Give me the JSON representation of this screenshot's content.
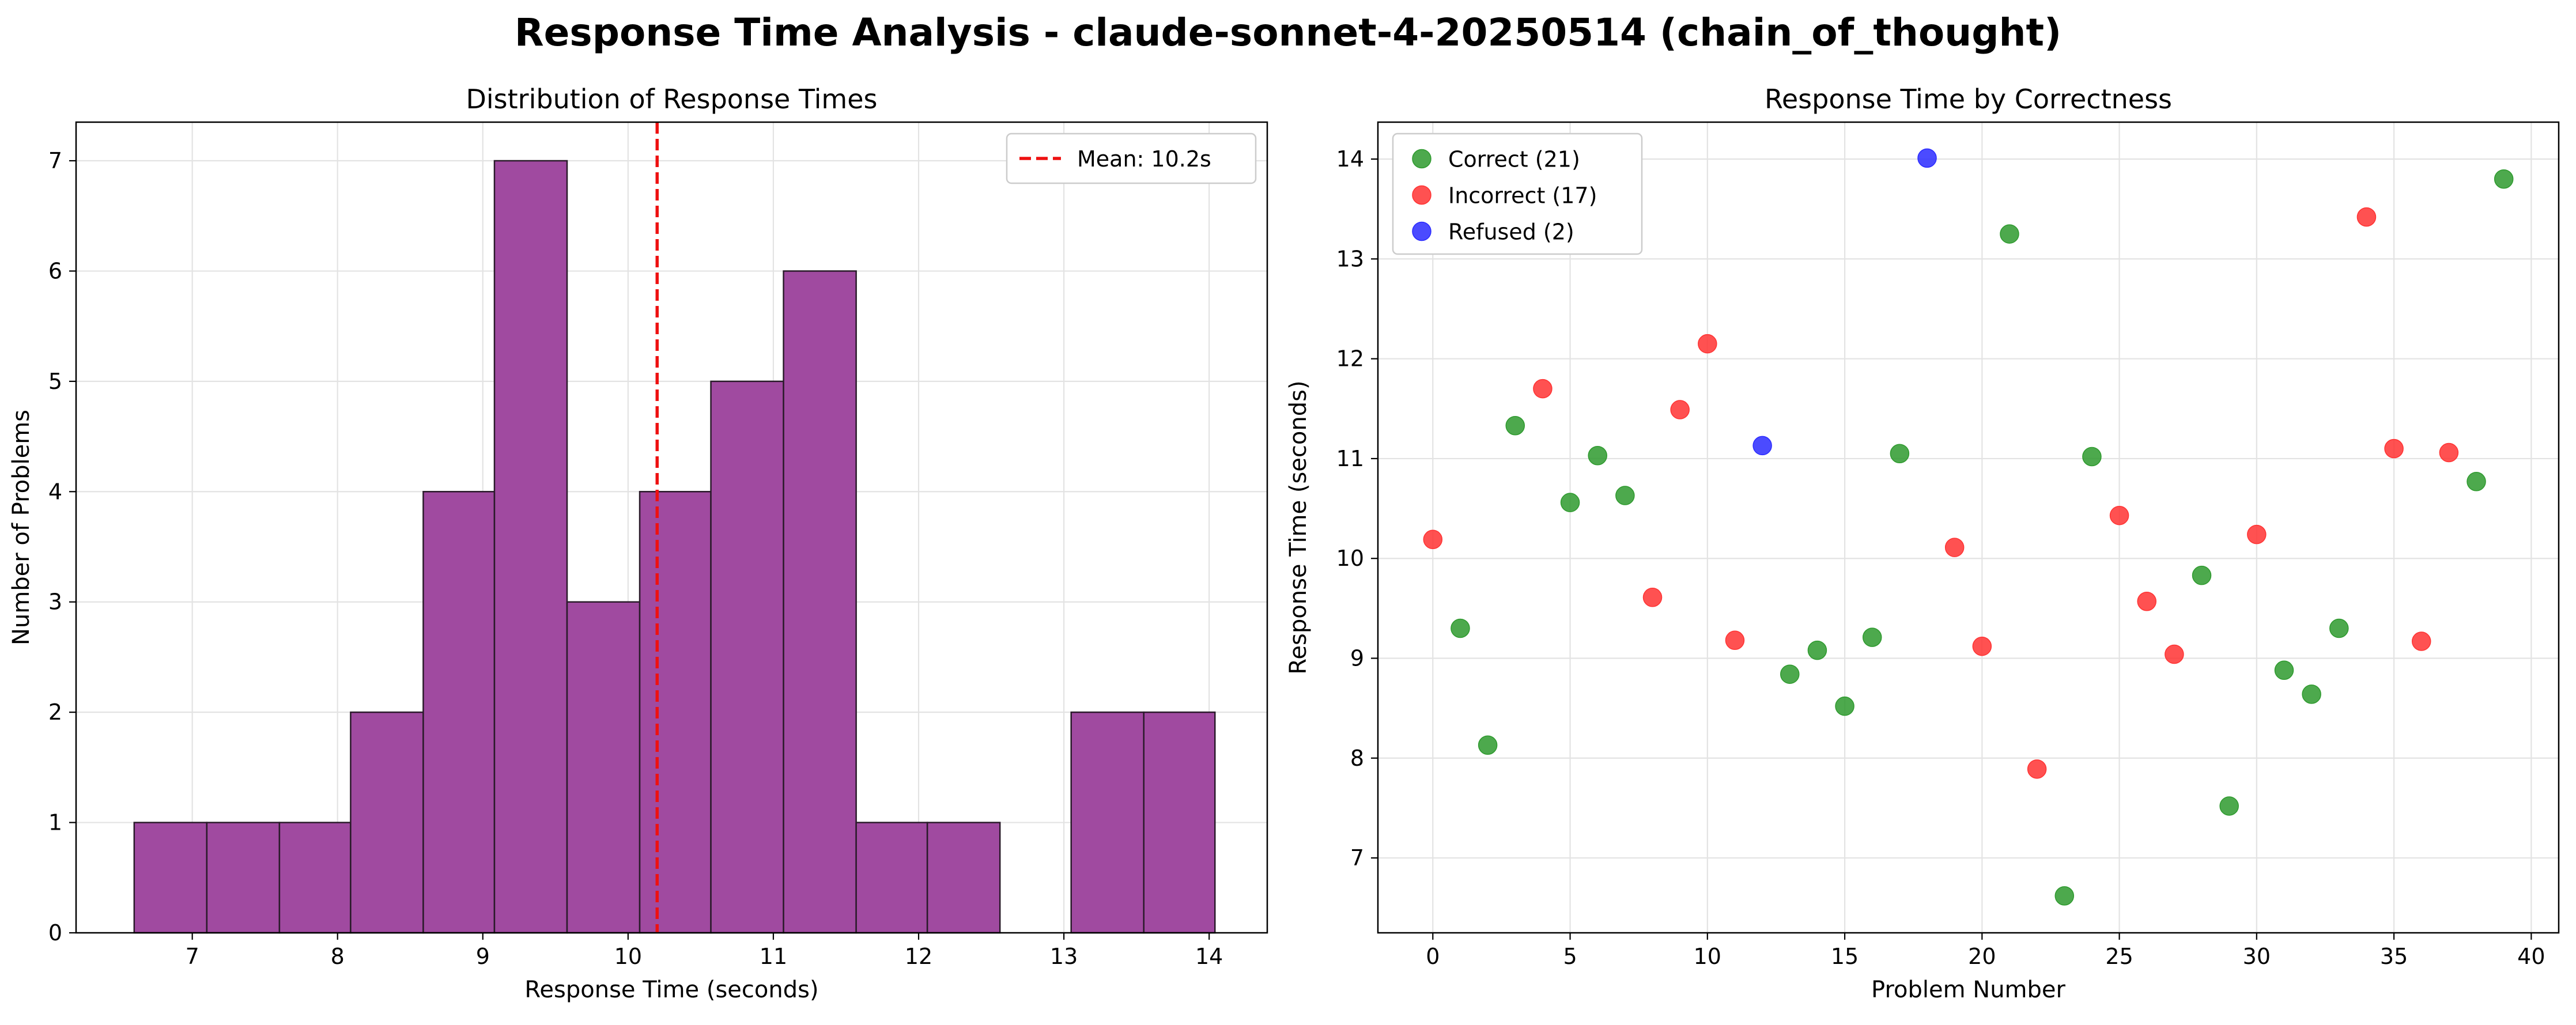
{
  "figure": {
    "suptitle": "Response Time Analysis - claude-sonnet-4-20250514 (chain_of_thought)"
  },
  "chart_data": [
    {
      "type": "bar",
      "title": "Distribution of Response Times",
      "xlabel": "Response Time (seconds)",
      "ylabel": "Number of Problems",
      "xlim": [
        6.2,
        14.4
      ],
      "ylim": [
        0,
        7.35
      ],
      "x_ticks": [
        7,
        8,
        9,
        10,
        11,
        12,
        13,
        14
      ],
      "y_ticks": [
        0,
        1,
        2,
        3,
        4,
        5,
        6,
        7
      ],
      "grid": true,
      "bin_edges": [
        6.6,
        7.1,
        7.6,
        8.09,
        8.59,
        9.08,
        9.58,
        10.08,
        10.57,
        11.07,
        11.57,
        12.06,
        12.56,
        13.05,
        13.55,
        14.04
      ],
      "values": [
        1,
        1,
        1,
        2,
        4,
        7,
        3,
        4,
        5,
        6,
        1,
        1,
        0,
        2,
        2
      ],
      "bar_color": "#a04aa0",
      "edge_color": "#2a1a2a",
      "mean_line": {
        "value": 10.2,
        "label": "Mean: 10.2s",
        "color": "#ee1111"
      },
      "legend_position": "top-right"
    },
    {
      "type": "scatter",
      "title": "Response Time by Correctness",
      "xlabel": "Problem Number",
      "ylabel": "Response Time (seconds)",
      "xlim": [
        -2,
        41
      ],
      "ylim": [
        6.25,
        14.37
      ],
      "x_ticks": [
        0,
        5,
        10,
        15,
        20,
        25,
        30,
        35,
        40
      ],
      "y_ticks": [
        7,
        8,
        9,
        10,
        11,
        12,
        13,
        14
      ],
      "grid": true,
      "legend_position": "top-left",
      "series": [
        {
          "name": "Correct (21)",
          "color": "#2e9a2e",
          "points": [
            [
              1,
              9.3
            ],
            [
              2,
              8.13
            ],
            [
              3,
              11.33
            ],
            [
              5,
              10.56
            ],
            [
              6,
              11.03
            ],
            [
              7,
              10.63
            ],
            [
              13,
              8.84
            ],
            [
              14,
              9.08
            ],
            [
              15,
              8.52
            ],
            [
              16,
              9.21
            ],
            [
              17,
              11.05
            ],
            [
              21,
              13.25
            ],
            [
              23,
              6.62
            ],
            [
              24,
              11.02
            ],
            [
              28,
              9.83
            ],
            [
              29,
              7.52
            ],
            [
              31,
              8.88
            ],
            [
              32,
              8.64
            ],
            [
              33,
              9.3
            ],
            [
              38,
              10.77
            ],
            [
              39,
              13.8
            ]
          ]
        },
        {
          "name": "Incorrect (17)",
          "color": "#ff3333",
          "points": [
            [
              0,
              10.19
            ],
            [
              4,
              11.7
            ],
            [
              8,
              9.61
            ],
            [
              9,
              11.49
            ],
            [
              10,
              12.15
            ],
            [
              11,
              9.18
            ],
            [
              19,
              10.11
            ],
            [
              20,
              9.12
            ],
            [
              22,
              7.89
            ],
            [
              25,
              10.43
            ],
            [
              26,
              9.57
            ],
            [
              27,
              9.04
            ],
            [
              30,
              10.24
            ],
            [
              34,
              13.42
            ],
            [
              35,
              11.1
            ],
            [
              36,
              9.17
            ],
            [
              37,
              11.06
            ]
          ]
        },
        {
          "name": "Refused (2)",
          "color": "#2b2bff",
          "points": [
            [
              12,
              11.13
            ],
            [
              18,
              14.01
            ]
          ]
        }
      ]
    }
  ]
}
